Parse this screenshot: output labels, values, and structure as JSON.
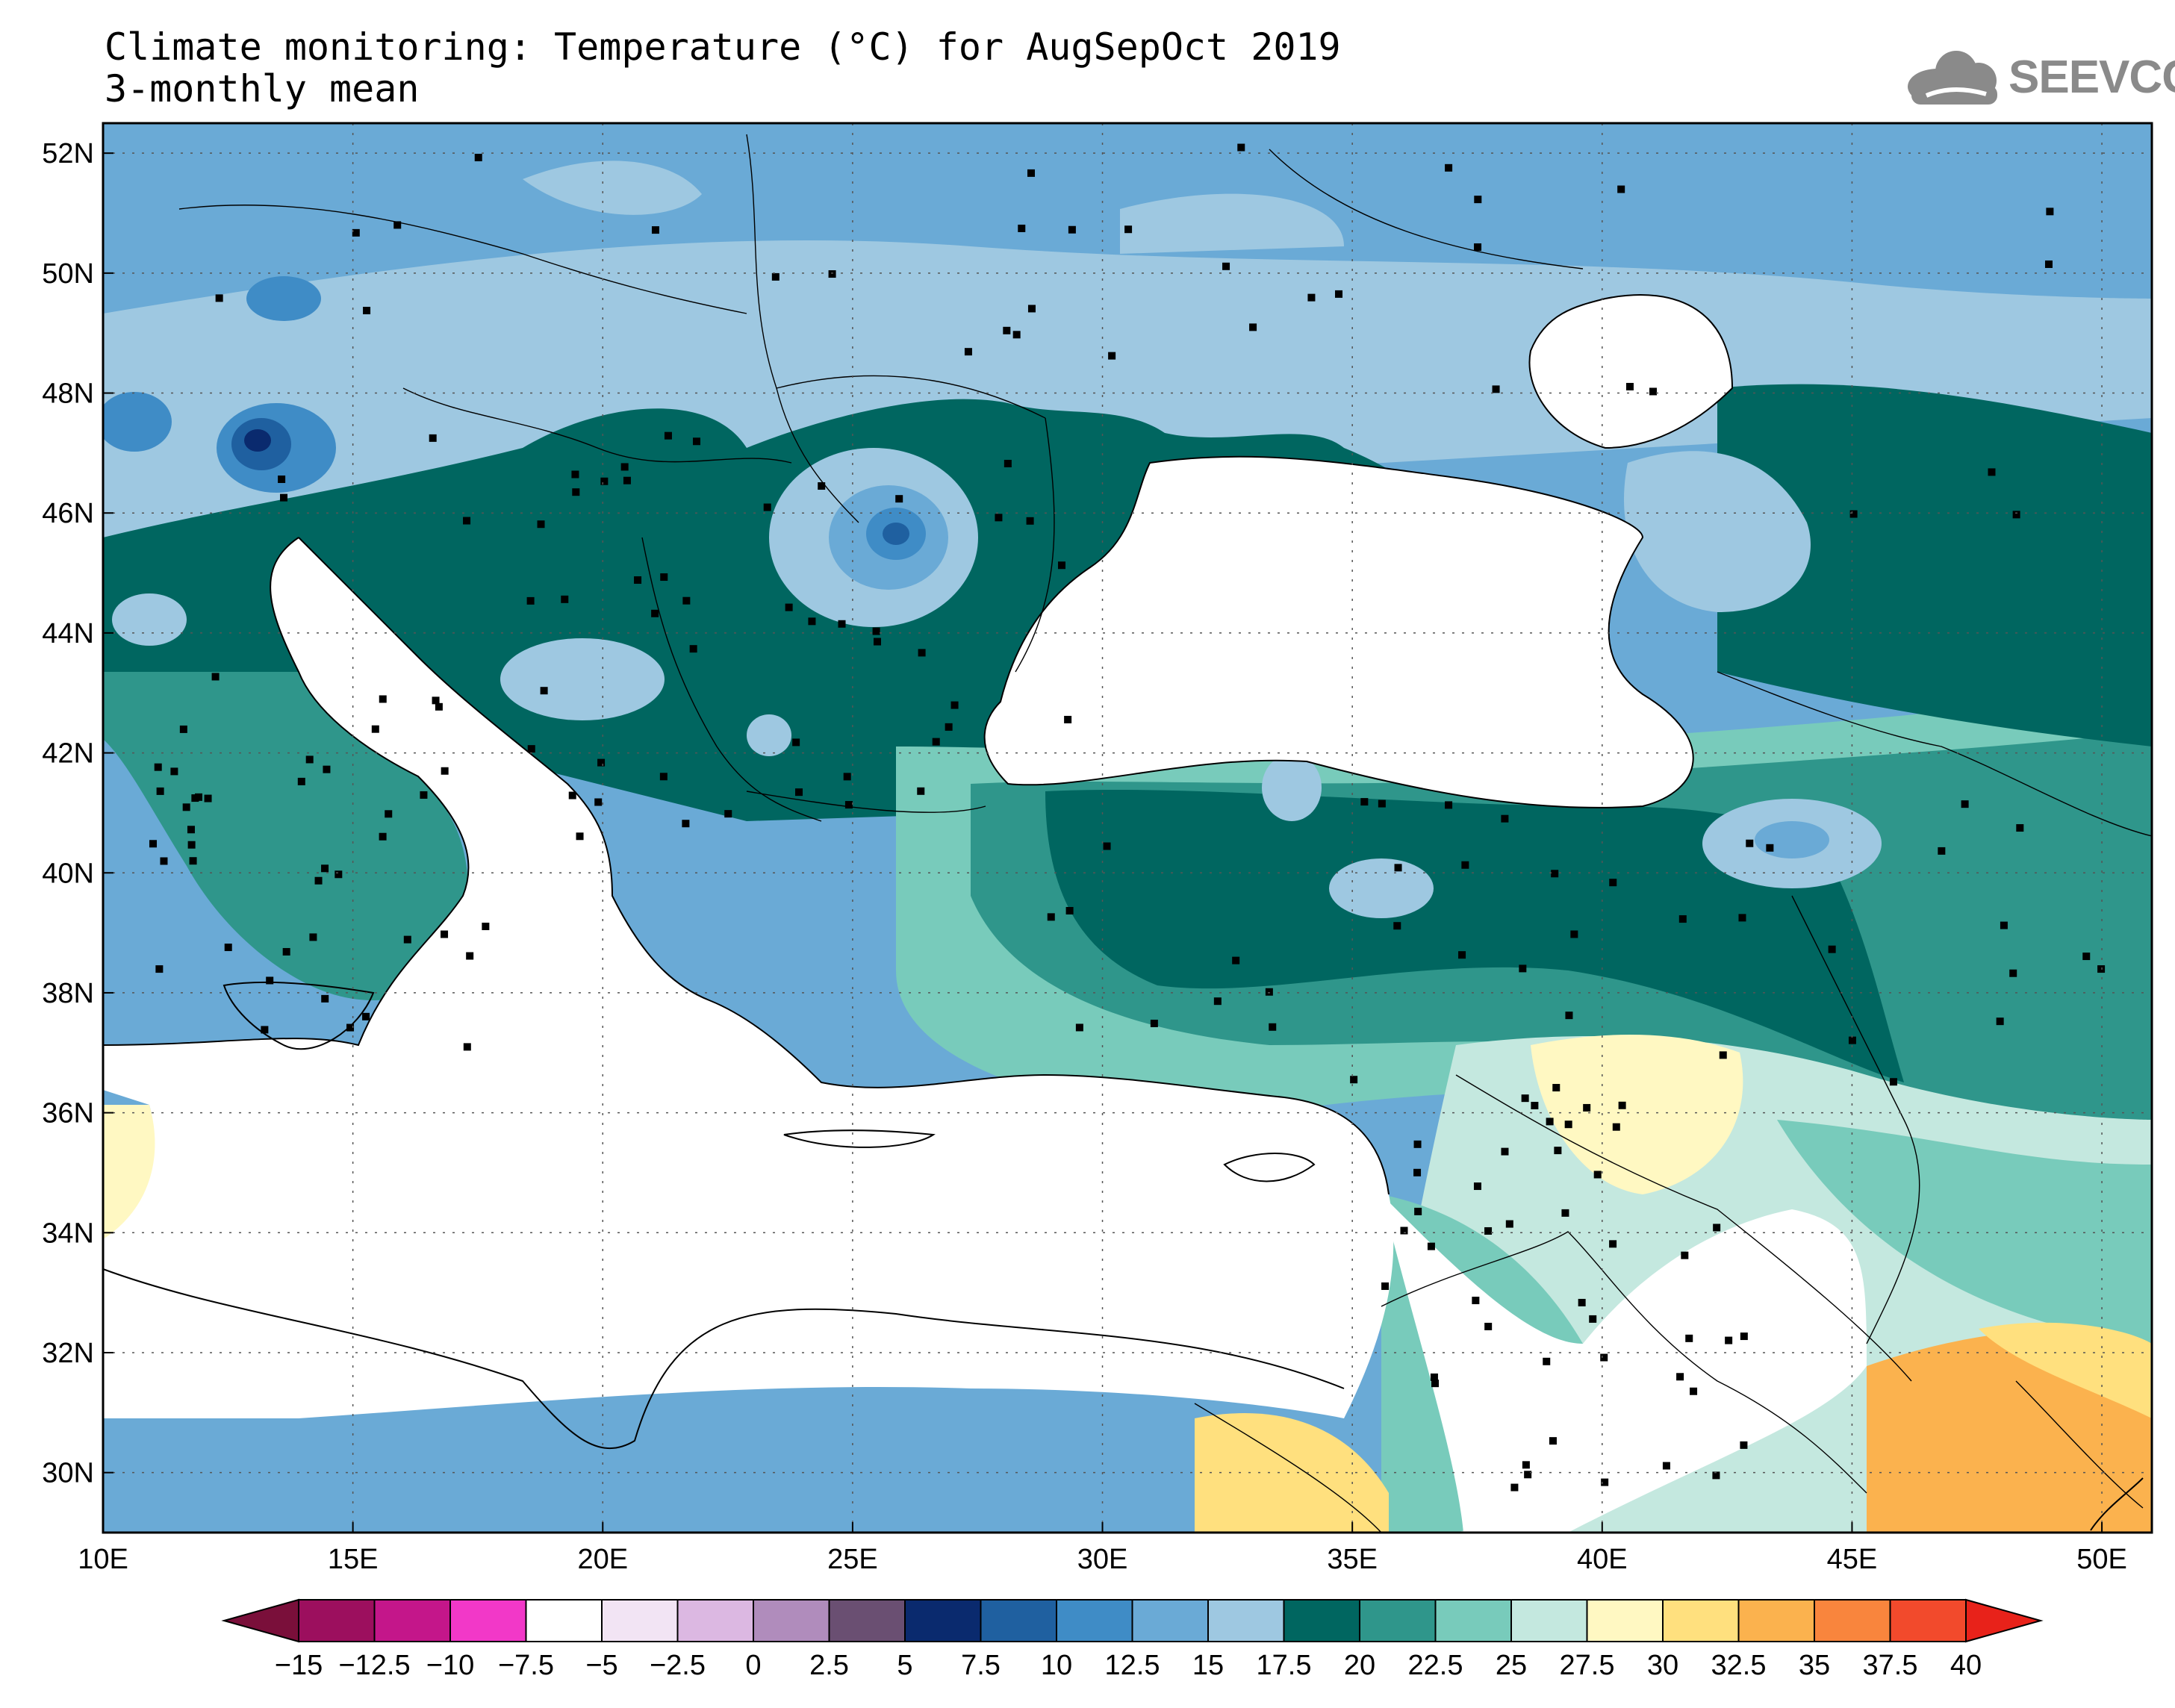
{
  "title": {
    "line1": "Climate monitoring: Temperature (°C) for AugSepOct 2019",
    "line2": "3-monthly mean"
  },
  "logo": {
    "text": "SEEVCCC",
    "icon": "cloud-icon"
  },
  "map": {
    "lon_range": [
      10,
      51
    ],
    "lat_range": [
      29,
      52.5
    ],
    "lon_ticks": [
      {
        "v": 10,
        "label": "10E"
      },
      {
        "v": 15,
        "label": "15E"
      },
      {
        "v": 20,
        "label": "20E"
      },
      {
        "v": 25,
        "label": "25E"
      },
      {
        "v": 30,
        "label": "30E"
      },
      {
        "v": 35,
        "label": "35E"
      },
      {
        "v": 40,
        "label": "40E"
      },
      {
        "v": 45,
        "label": "45E"
      },
      {
        "v": 50,
        "label": "50E"
      }
    ],
    "lat_ticks": [
      {
        "v": 30,
        "label": "30N"
      },
      {
        "v": 32,
        "label": "32N"
      },
      {
        "v": 34,
        "label": "34N"
      },
      {
        "v": 36,
        "label": "36N"
      },
      {
        "v": 38,
        "label": "38N"
      },
      {
        "v": 40,
        "label": "40N"
      },
      {
        "v": 42,
        "label": "42N"
      },
      {
        "v": 44,
        "label": "44N"
      },
      {
        "v": 46,
        "label": "46N"
      },
      {
        "v": 48,
        "label": "48N"
      },
      {
        "v": 50,
        "label": "50N"
      },
      {
        "v": 52,
        "label": "52N"
      }
    ],
    "grid": "dotted"
  },
  "colorbar": {
    "labels": [
      "-15",
      "-12.5",
      "-10",
      "-7.5",
      "-5",
      "-2.5",
      "0",
      "2.5",
      "5",
      "7.5",
      "10",
      "12.5",
      "15",
      "17.5",
      "20",
      "22.5",
      "25",
      "27.5",
      "30",
      "32.5",
      "35",
      "37.5",
      "40"
    ],
    "low_arrow_color": "#7a0f3a",
    "high_arrow_color": "#e8221a",
    "colors": [
      "#9c0f5e",
      "#c4168a",
      "#f238c8",
      "#ffffff",
      "#f2e4f4",
      "#dcb8e2",
      "#b08cbc",
      "#6a4f72",
      "#0a2a6e",
      "#1f60a0",
      "#3f8cc6",
      "#6aaad6",
      "#9ec8e1",
      "#006660",
      "#2f968b",
      "#78cbbb",
      "#c4e8df",
      "#fff8c2",
      "#ffe07e",
      "#fbb24e",
      "#f9853d",
      "#f24a2c"
    ]
  }
}
